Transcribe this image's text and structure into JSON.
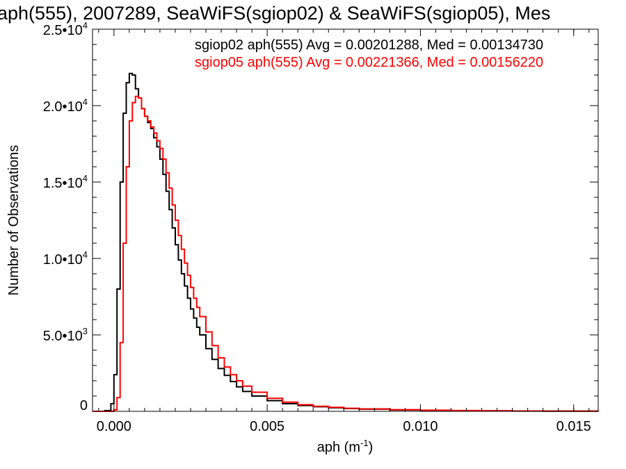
{
  "chart_data": {
    "type": "line",
    "title": "aph(555), 2007289, SeaWiFS(sgiop02) & SeaWiFS(sgiop05), Mes",
    "xlabel": "aph (m",
    "xlabel_sup": "-1",
    "xlabel_close": ")",
    "ylabel": "Number of Observations",
    "xlim": [
      -0.0007,
      0.0158
    ],
    "ylim": [
      0,
      25000
    ],
    "x_ticks": [
      {
        "value": 0.0,
        "label": "0.000"
      },
      {
        "value": 0.005,
        "label": "0.005"
      },
      {
        "value": 0.01,
        "label": "0.010"
      },
      {
        "value": 0.015,
        "label": "0.015"
      }
    ],
    "y_ticks": [
      {
        "value": 0,
        "mant": "0",
        "exp": ""
      },
      {
        "value": 5000,
        "mant": "5.0•10",
        "exp": "3"
      },
      {
        "value": 10000,
        "mant": "1.0•10",
        "exp": "4"
      },
      {
        "value": 15000,
        "mant": "1.5•10",
        "exp": "4"
      },
      {
        "value": 20000,
        "mant": "2.0•10",
        "exp": "4"
      },
      {
        "value": 25000,
        "mant": "2.5•10",
        "exp": "4"
      }
    ],
    "annotations": [
      {
        "text": "sgiop02 aph(555) Avg = 0.00201288, Med = 0.00134730",
        "color": "#000000"
      },
      {
        "text": "sgiop05 aph(555) Avg = 0.00221366, Med = 0.00156220",
        "color": "#ff0000"
      }
    ],
    "series": [
      {
        "color": "#000000",
        "x": [
          -0.0007,
          -0.0003,
          -0.0001,
          0.0,
          0.0001,
          0.0002,
          0.0003,
          0.0004,
          0.0005,
          0.0006,
          0.0007,
          0.0008,
          0.0009,
          0.001,
          0.0011,
          0.0012,
          0.0013,
          0.0014,
          0.0015,
          0.0016,
          0.0017,
          0.0018,
          0.0019,
          0.002,
          0.0021,
          0.0022,
          0.0023,
          0.0024,
          0.0025,
          0.0026,
          0.0027,
          0.0028,
          0.003,
          0.0032,
          0.0034,
          0.0036,
          0.0038,
          0.004,
          0.0042,
          0.0045,
          0.005,
          0.0055,
          0.006,
          0.0065,
          0.007,
          0.0075,
          0.008,
          0.009,
          0.01,
          0.011,
          0.012,
          0.013,
          0.014,
          0.015,
          0.0158
        ],
        "y": [
          0,
          50,
          500,
          2400,
          8000,
          15000,
          19500,
          21500,
          22100,
          22000,
          21100,
          20500,
          19800,
          19300,
          18900,
          18500,
          17900,
          17300,
          16500,
          15500,
          14400,
          13200,
          12000,
          10900,
          9900,
          9000,
          8200,
          7400,
          6700,
          6100,
          5500,
          5000,
          4100,
          3400,
          2800,
          2350,
          1950,
          1600,
          1300,
          1000,
          700,
          500,
          380,
          300,
          230,
          180,
          140,
          90,
          60,
          40,
          30,
          20,
          15,
          10,
          5
        ]
      },
      {
        "color": "#ff0000",
        "x": [
          -0.0007,
          -0.0001,
          0.0,
          0.0001,
          0.0002,
          0.0003,
          0.0004,
          0.0005,
          0.0006,
          0.0007,
          0.0008,
          0.0009,
          0.001,
          0.0011,
          0.0012,
          0.0013,
          0.0014,
          0.0015,
          0.0016,
          0.0017,
          0.0018,
          0.0019,
          0.002,
          0.0021,
          0.0022,
          0.0023,
          0.0024,
          0.0025,
          0.0026,
          0.0027,
          0.0028,
          0.003,
          0.0032,
          0.0034,
          0.0036,
          0.0038,
          0.004,
          0.0042,
          0.0045,
          0.005,
          0.0055,
          0.006,
          0.0065,
          0.007,
          0.0075,
          0.008,
          0.009,
          0.01,
          0.011,
          0.012,
          0.013,
          0.014,
          0.015,
          0.0158
        ],
        "y": [
          0,
          0,
          100,
          900,
          4500,
          11000,
          16000,
          19000,
          20200,
          20600,
          20500,
          19800,
          19300,
          19000,
          18600,
          18200,
          17700,
          17200,
          16500,
          15600,
          14600,
          13500,
          12500,
          11500,
          10600,
          9700,
          8900,
          8100,
          7400,
          6800,
          6200,
          5200,
          4300,
          3500,
          2900,
          2400,
          2000,
          1650,
          1250,
          850,
          600,
          430,
          330,
          260,
          200,
          160,
          110,
          75,
          50,
          35,
          25,
          18,
          12,
          6
        ]
      }
    ]
  }
}
